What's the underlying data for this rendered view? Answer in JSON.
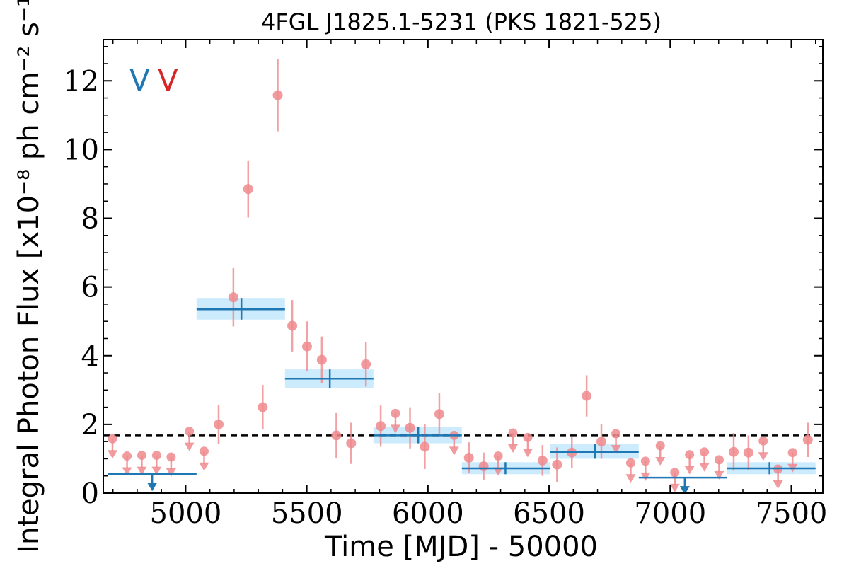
{
  "chart_data": {
    "type": "scatter",
    "title": "4FGL J1825.1-5231 (PKS 1821-525)",
    "xlabel": "Time [MJD] - 50000",
    "ylabel": "Integral Photon Flux [x10⁻⁸ ph cm⁻² s⁻¹]",
    "xlim": [
      4660,
      7630
    ],
    "ylim": [
      0,
      13.2
    ],
    "x_ticks": [
      5000,
      5500,
      6000,
      6500,
      7000,
      7500
    ],
    "x_tick_labels": [
      "5000",
      "5500",
      "6000",
      "6500",
      "7000",
      "7500"
    ],
    "y_ticks": [
      0,
      2,
      4,
      6,
      8,
      10,
      12
    ],
    "y_tick_labels": [
      "0",
      "2",
      "4",
      "6",
      "8",
      "10",
      "12"
    ],
    "mean_flux": 1.68,
    "legend": {
      "placement": "top-left",
      "entries": [
        {
          "label": "V",
          "color": "#1f77b4"
        },
        {
          "label": "V",
          "color": "#d62728"
        }
      ]
    },
    "colors": {
      "points": "#ef8a8e",
      "bins": "#1f77b4",
      "band": "#bfe6fb",
      "mean_line": "#000000"
    },
    "series": [
      {
        "name": "",
        "kind": "short-bin light curve",
        "detections": [
          {
            "x": 5136,
            "y": 2.0,
            "err": 0.57
          },
          {
            "x": 5197,
            "y": 5.7,
            "err": 0.85
          },
          {
            "x": 5258,
            "y": 8.85,
            "err": 0.83
          },
          {
            "x": 5318,
            "y": 2.5,
            "err": 0.65
          },
          {
            "x": 5380,
            "y": 11.58,
            "err": 1.05
          },
          {
            "x": 5440,
            "y": 4.87,
            "err": 0.75
          },
          {
            "x": 5501,
            "y": 4.27,
            "err": 0.73
          },
          {
            "x": 5562,
            "y": 3.88,
            "err": 0.68
          },
          {
            "x": 5622,
            "y": 1.68,
            "err": 0.65
          },
          {
            "x": 5683,
            "y": 1.45,
            "err": 0.6
          },
          {
            "x": 5744,
            "y": 3.75,
            "err": 0.65
          },
          {
            "x": 5805,
            "y": 1.95,
            "err": 0.6
          },
          {
            "x": 5926,
            "y": 1.9,
            "err": 0.6
          },
          {
            "x": 5987,
            "y": 1.35,
            "err": 0.65
          },
          {
            "x": 6047,
            "y": 2.3,
            "err": 0.62
          },
          {
            "x": 6169,
            "y": 1.03,
            "err": 0.45
          },
          {
            "x": 6230,
            "y": 0.78,
            "err": 0.4
          },
          {
            "x": 6473,
            "y": 0.95,
            "err": 0.45
          },
          {
            "x": 6533,
            "y": 0.83,
            "err": 0.5
          },
          {
            "x": 6594,
            "y": 1.18,
            "err": 0.45
          },
          {
            "x": 6655,
            "y": 2.83,
            "err": 0.6
          },
          {
            "x": 6716,
            "y": 1.5,
            "err": 0.5
          },
          {
            "x": 7262,
            "y": 1.2,
            "err": 0.55
          },
          {
            "x": 7323,
            "y": 1.18,
            "err": 0.5
          },
          {
            "x": 7568,
            "y": 1.55,
            "err": 0.5
          }
        ],
        "upper_limits": [
          {
            "x": 4698,
            "y": 1.58
          },
          {
            "x": 4758,
            "y": 1.08
          },
          {
            "x": 4819,
            "y": 1.1
          },
          {
            "x": 4880,
            "y": 1.1
          },
          {
            "x": 4940,
            "y": 1.05
          },
          {
            "x": 5015,
            "y": 1.8
          },
          {
            "x": 5076,
            "y": 1.22
          },
          {
            "x": 5866,
            "y": 2.32
          },
          {
            "x": 6108,
            "y": 1.68
          },
          {
            "x": 6290,
            "y": 1.08
          },
          {
            "x": 6351,
            "y": 1.75
          },
          {
            "x": 6412,
            "y": 1.62
          },
          {
            "x": 6776,
            "y": 1.73
          },
          {
            "x": 6837,
            "y": 0.88
          },
          {
            "x": 6898,
            "y": 0.93
          },
          {
            "x": 6959,
            "y": 1.38
          },
          {
            "x": 7019,
            "y": 0.6
          },
          {
            "x": 7080,
            "y": 1.12
          },
          {
            "x": 7141,
            "y": 1.2
          },
          {
            "x": 7202,
            "y": 0.97
          },
          {
            "x": 7384,
            "y": 1.52
          },
          {
            "x": 7445,
            "y": 0.7
          },
          {
            "x": 7505,
            "y": 1.18
          }
        ]
      },
      {
        "name": "",
        "kind": "long-bin light curve",
        "bins": [
          {
            "x0": 4680,
            "x1": 5045,
            "y": 0.55,
            "upper_limit": true,
            "ul_x": 4862
          },
          {
            "x0": 5045,
            "x1": 5410,
            "y": 5.35,
            "lo": 5.05,
            "hi": 5.68,
            "xc": 5230
          },
          {
            "x0": 5410,
            "x1": 5775,
            "y": 3.33,
            "lo": 3.05,
            "hi": 3.6,
            "xc": 5595
          },
          {
            "x0": 5775,
            "x1": 6140,
            "y": 1.68,
            "lo": 1.45,
            "hi": 1.92,
            "xc": 5960
          },
          {
            "x0": 6140,
            "x1": 6505,
            "y": 0.72,
            "lo": 0.55,
            "hi": 0.9,
            "xc": 6320
          },
          {
            "x0": 6505,
            "x1": 6870,
            "y": 1.2,
            "lo": 1.0,
            "hi": 1.42,
            "xc": 6690
          },
          {
            "x0": 6870,
            "x1": 7235,
            "y": 0.45,
            "upper_limit": true,
            "ul_x": 7060
          },
          {
            "x0": 7235,
            "x1": 7600,
            "y": 0.72,
            "lo": 0.55,
            "hi": 0.9,
            "xc": 7410
          }
        ]
      }
    ]
  }
}
